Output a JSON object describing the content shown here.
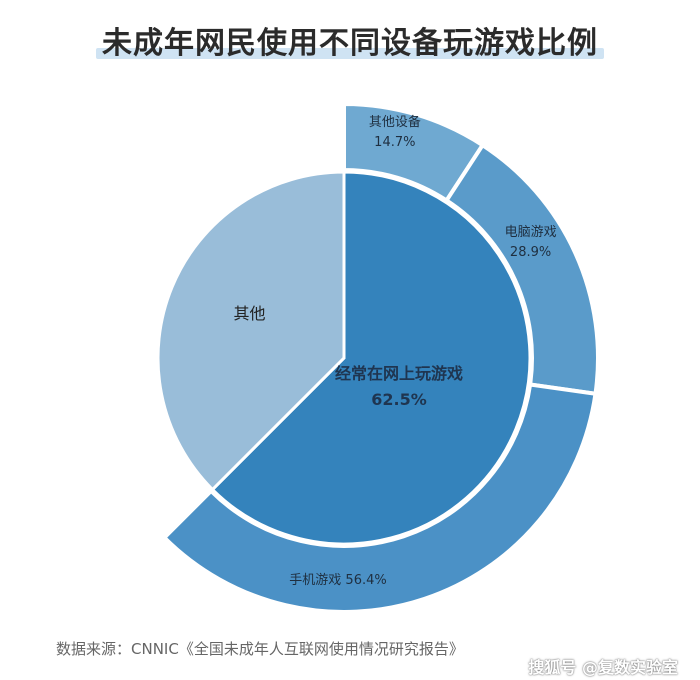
{
  "title": "未成年网民使用不同设备玩游戏比例",
  "source": "数据来源：CNNIC《全国未成年人互联网使用情况研究报告》",
  "watermark": "搜狐号 @复数实验室",
  "chart_data": {
    "type": "pie",
    "inner": {
      "slices": [
        {
          "label": "经常在网上玩游戏",
          "value": 62.5,
          "value_label": "62.5%",
          "color": "#3483bc"
        },
        {
          "label": "其他",
          "value": 37.5,
          "value_label": "",
          "color": "#99bdd9"
        }
      ]
    },
    "outer": {
      "slices": [
        {
          "label": "其他设备",
          "value": 14.7,
          "value_label": "14.7%",
          "color": "#6fa9d1"
        },
        {
          "label": "电脑游戏",
          "value": 28.9,
          "value_label": "28.9%",
          "color": "#5a9bca"
        },
        {
          "label": "手机游戏",
          "value": 56.4,
          "value_label": "56.4%",
          "color": "#4b91c6"
        }
      ]
    }
  }
}
